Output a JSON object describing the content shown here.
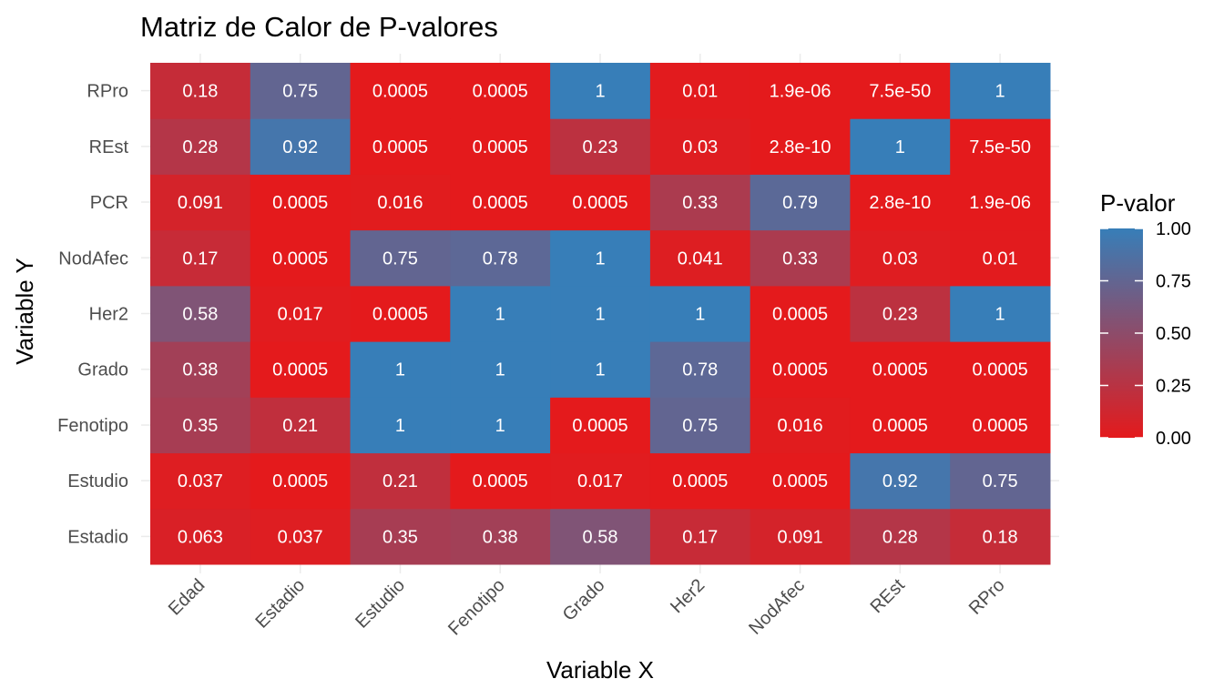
{
  "chart_data": {
    "type": "heatmap",
    "title": "Matriz de Calor de P-valores",
    "xlabel": "Variable X",
    "ylabel": "Variable Y",
    "x_categories": [
      "Edad",
      "Estadio",
      "Estudio",
      "Fenotipo",
      "Grado",
      "Her2",
      "NodAfec",
      "REst",
      "RPro"
    ],
    "y_categories": [
      "Estadio",
      "Estudio",
      "Fenotipo",
      "Grado",
      "Her2",
      "NodAfec",
      "PCR",
      "REst",
      "RPro"
    ],
    "values": [
      [
        0.063,
        0.037,
        0.35,
        0.38,
        0.58,
        0.17,
        0.091,
        0.28,
        0.18
      ],
      [
        0.037,
        0.0005,
        0.21,
        0.0005,
        0.017,
        0.0005,
        0.0005,
        0.92,
        0.75
      ],
      [
        0.35,
        0.21,
        1,
        1,
        0.0005,
        0.75,
        0.016,
        0.0005,
        0.0005
      ],
      [
        0.38,
        0.0005,
        1,
        1,
        1,
        0.78,
        0.0005,
        0.0005,
        0.0005
      ],
      [
        0.58,
        0.017,
        0.0005,
        1,
        1,
        1,
        0.0005,
        0.23,
        1
      ],
      [
        0.17,
        0.0005,
        0.75,
        0.78,
        1,
        0.041,
        0.33,
        0.03,
        0.01
      ],
      [
        0.091,
        0.0005,
        0.016,
        0.0005,
        0.0005,
        0.33,
        0.79,
        2.8e-10,
        1.9e-06
      ],
      [
        0.28,
        0.92,
        0.0005,
        0.0005,
        0.23,
        0.03,
        2.8e-10,
        1,
        7.5e-50
      ],
      [
        0.18,
        0.75,
        0.0005,
        0.0005,
        1,
        0.01,
        1.9e-06,
        7.5e-50,
        1
      ]
    ],
    "labels": [
      [
        "0.063",
        "0.037",
        "0.35",
        "0.38",
        "0.58",
        "0.17",
        "0.091",
        "0.28",
        "0.18"
      ],
      [
        "0.037",
        "0.0005",
        "0.21",
        "0.0005",
        "0.017",
        "0.0005",
        "0.0005",
        "0.92",
        "0.75"
      ],
      [
        "0.35",
        "0.21",
        "1",
        "1",
        "0.0005",
        "0.75",
        "0.016",
        "0.0005",
        "0.0005"
      ],
      [
        "0.38",
        "0.0005",
        "1",
        "1",
        "1",
        "0.78",
        "0.0005",
        "0.0005",
        "0.0005"
      ],
      [
        "0.58",
        "0.017",
        "0.0005",
        "1",
        "1",
        "1",
        "0.0005",
        "0.23",
        "1"
      ],
      [
        "0.17",
        "0.0005",
        "0.75",
        "0.78",
        "1",
        "0.041",
        "0.33",
        "0.03",
        "0.01"
      ],
      [
        "0.091",
        "0.0005",
        "0.016",
        "0.0005",
        "0.0005",
        "0.33",
        "0.79",
        "2.8e-10",
        "1.9e-06"
      ],
      [
        "0.28",
        "0.92",
        "0.0005",
        "0.0005",
        "0.23",
        "0.03",
        "2.8e-10",
        "1",
        "7.5e-50"
      ],
      [
        "0.18",
        "0.75",
        "0.0005",
        "0.0005",
        "1",
        "0.01",
        "1.9e-06",
        "7.5e-50",
        "1"
      ]
    ],
    "legend": {
      "title": "P-valor",
      "ticks": [
        1.0,
        0.75,
        0.5,
        0.25,
        0.0
      ],
      "tick_labels": [
        "1.00",
        "0.75",
        "0.50",
        "0.25",
        "0.00"
      ],
      "placement": "right"
    },
    "color_scale": {
      "low": "#e41a1c",
      "high": "#377eb8",
      "range": [
        0,
        1
      ]
    },
    "grid": true
  }
}
